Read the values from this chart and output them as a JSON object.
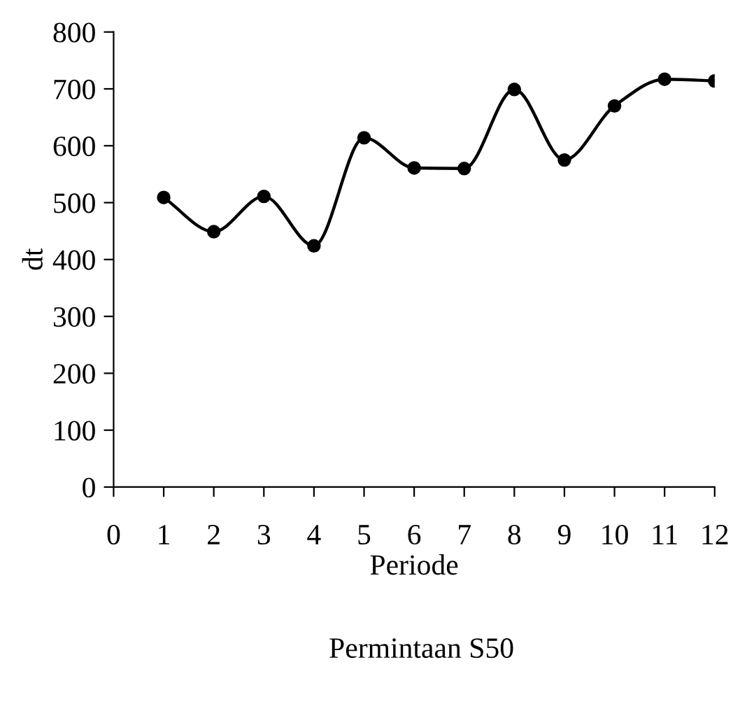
{
  "chart_data": {
    "type": "line",
    "title": "Permintaan S50",
    "xlabel": "Periode",
    "ylabel": "dt",
    "x": [
      1,
      2,
      3,
      4,
      5,
      6,
      7,
      8,
      9,
      10,
      11,
      12
    ],
    "series": [
      {
        "color": "#000000",
        "values": [
          509,
          449,
          511,
          424,
          614,
          561,
          560,
          699,
          575,
          670,
          717,
          714
        ]
      }
    ],
    "xlim": [
      0,
      12
    ],
    "xticks": [
      0,
      1,
      2,
      3,
      4,
      5,
      6,
      7,
      8,
      9,
      10,
      11,
      12
    ],
    "ylim": [
      0,
      800
    ],
    "yticks": [
      0,
      100,
      200,
      300,
      400,
      500,
      600,
      700,
      800
    ],
    "marker": "circle",
    "line_style": "solid",
    "grid": false,
    "legend": false
  }
}
